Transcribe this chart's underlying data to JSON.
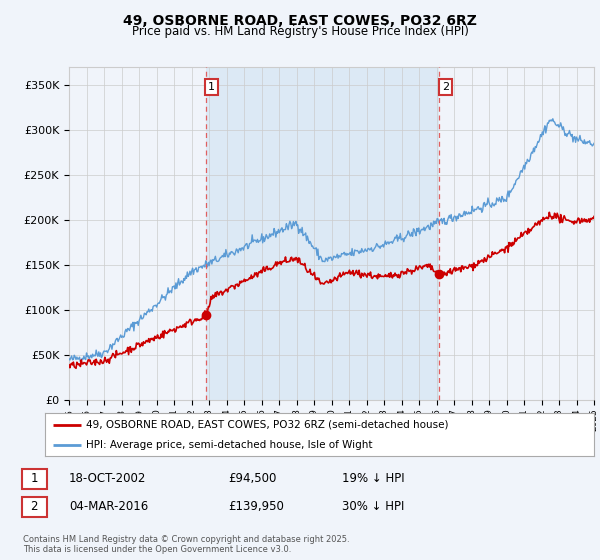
{
  "title": "49, OSBORNE ROAD, EAST COWES, PO32 6RZ",
  "subtitle": "Price paid vs. HM Land Registry's House Price Index (HPI)",
  "legend_line1": "49, OSBORNE ROAD, EAST COWES, PO32 6RZ (semi-detached house)",
  "legend_line2": "HPI: Average price, semi-detached house, Isle of Wight",
  "annotation1": {
    "num": "1",
    "date": "18-OCT-2002",
    "price": "£94,500",
    "hpi": "19% ↓ HPI"
  },
  "annotation2": {
    "num": "2",
    "date": "04-MAR-2016",
    "price": "£139,950",
    "hpi": "30% ↓ HPI"
  },
  "footer": "Contains HM Land Registry data © Crown copyright and database right 2025.\nThis data is licensed under the Open Government Licence v3.0.",
  "hpi_color": "#5b9bd5",
  "price_color": "#cc0000",
  "vline_color": "#e06060",
  "shade_color": "#dce9f5",
  "background_color": "#f0f4fa",
  "plot_bg_color": "#f0f4fa",
  "ylim": [
    0,
    370000
  ],
  "yticks": [
    0,
    50000,
    100000,
    150000,
    200000,
    250000,
    300000,
    350000
  ],
  "sale1_year": 2002.8,
  "sale2_year": 2016.17,
  "sale1_price": 94500,
  "sale2_price": 139950,
  "xmin": 1995,
  "xmax": 2025
}
